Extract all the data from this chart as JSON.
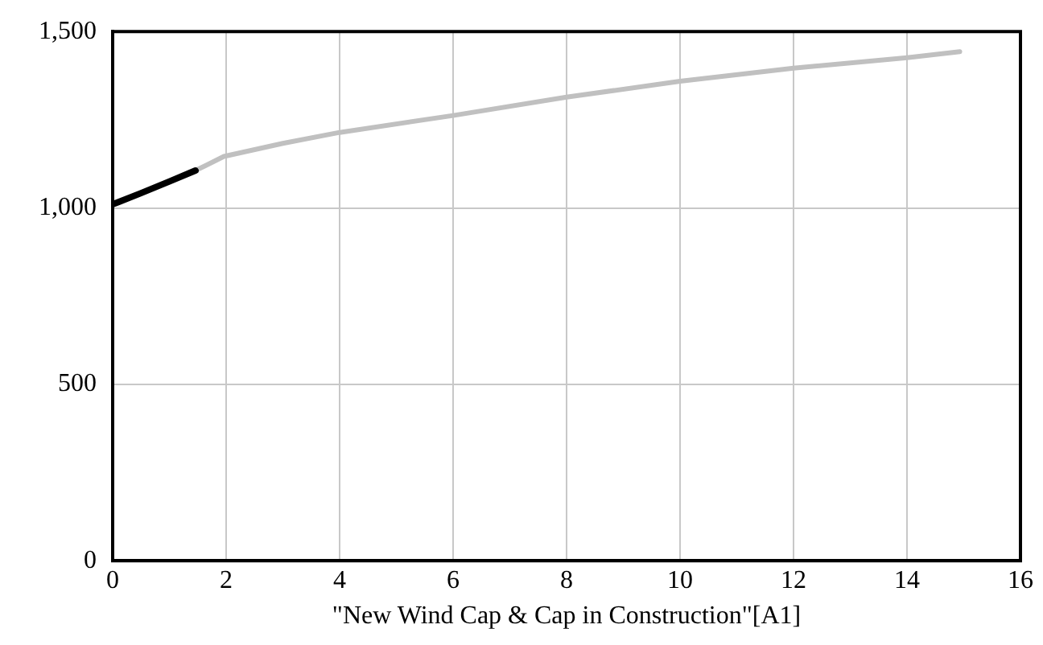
{
  "chart_data": {
    "type": "line",
    "xlabel": "\"New Wind Cap & Cap in Construction\"[A1]",
    "series": [
      {
        "color": "#000000",
        "x": [
          0,
          0.5,
          1,
          1.46
        ],
        "values": [
          1010,
          1042,
          1075,
          1106
        ]
      },
      {
        "color": "#c0c0c0",
        "x": [
          1.46,
          1.96,
          3,
          4,
          6,
          8,
          10,
          12,
          14,
          14.93
        ],
        "values": [
          1106,
          1146,
          1183,
          1214,
          1262,
          1314,
          1359,
          1396,
          1426,
          1443
        ]
      }
    ],
    "xlim": [
      0,
      16
    ],
    "xticks": [
      0,
      2,
      4,
      6,
      8,
      10,
      12,
      14,
      16
    ],
    "ylim": [
      0,
      1500
    ],
    "yticks": [
      0,
      500,
      {
        "value": 1000,
        "label": "1,000"
      },
      {
        "value": 1500,
        "label": "1,500"
      }
    ],
    "grid": true,
    "legend": false,
    "marker": "none",
    "line_style": "solid"
  }
}
